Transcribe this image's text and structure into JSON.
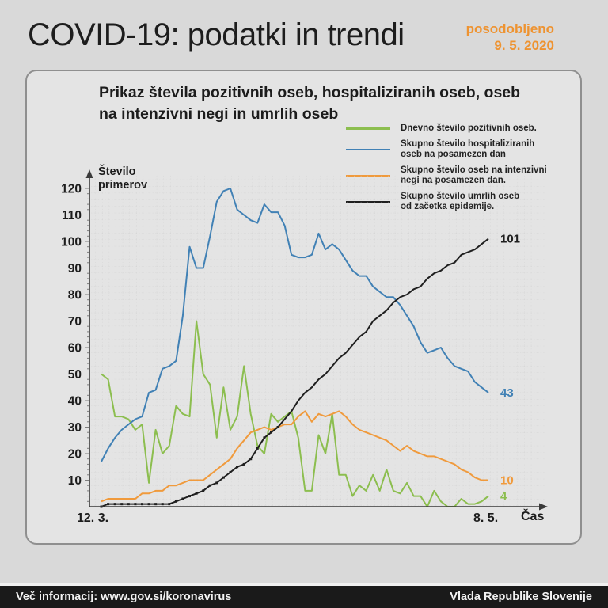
{
  "header": {
    "title": "COVID-19: podatki in trendi",
    "updated_label": "posodobljeno",
    "updated_date": "9. 5. 2020"
  },
  "panel": {
    "title_lines": [
      "Prikaz števila pozitivnih oseb, hospitaliziranih oseb, oseb",
      "na intenzivni negi in umrlih oseb"
    ]
  },
  "legend": {
    "items": [
      {
        "color": "#8cbe4f",
        "lines": [
          "Dnevno število pozitivnih oseb."
        ]
      },
      {
        "color": "#4181b5",
        "lines": [
          "Skupno število hospitaliziranih",
          "oseb na posamezen dan"
        ]
      },
      {
        "color": "#f09a3c",
        "lines": [
          "Skupno število oseb na intenzivni",
          "negi na posamezen dan."
        ]
      },
      {
        "color": "#1f1f1f",
        "lines": [
          "Skupno število umrlih oseb",
          "od začetka epidemije."
        ]
      }
    ]
  },
  "chart_data": {
    "type": "line",
    "title": "Prikaz števila pozitivnih oseb, hospitaliziranih oseb, oseb na intenzivni negi in umrlih oseb",
    "ylabel": "Število primerov",
    "xlabel": "Čas",
    "x_start_label": "12. 3.",
    "x_end_label": "8. 5.",
    "x_range_days": 58,
    "ylim": [
      0,
      120
    ],
    "y_ticks": [
      10,
      20,
      30,
      40,
      50,
      60,
      70,
      80,
      90,
      100,
      110,
      120
    ],
    "grid": "subtle-dotted",
    "legend_position": "top-right",
    "series": [
      {
        "name": "Dnevno število pozitivnih oseb.",
        "color": "#8cbe4f",
        "end_label": "4",
        "values": [
          50,
          48,
          34,
          34,
          33,
          29,
          31,
          9,
          29,
          20,
          23,
          38,
          35,
          34,
          70,
          50,
          46,
          26,
          45,
          29,
          34,
          53,
          35,
          23,
          20,
          35,
          32,
          34,
          36,
          26,
          6,
          6,
          27,
          20,
          35,
          12,
          12,
          4,
          8,
          6,
          12,
          6,
          14,
          6,
          5,
          9,
          4,
          4,
          0,
          6,
          2,
          0,
          0,
          3,
          1,
          1,
          2,
          4
        ]
      },
      {
        "name": "Skupno število hospitaliziranih oseb na posamezen dan",
        "color": "#4181b5",
        "end_label": "43",
        "values": [
          17,
          22,
          26,
          29,
          31,
          33,
          34,
          43,
          44,
          52,
          53,
          55,
          72,
          98,
          90,
          90,
          102,
          115,
          119,
          120,
          112,
          110,
          108,
          107,
          114,
          111,
          111,
          106,
          95,
          94,
          94,
          95,
          103,
          97,
          99,
          97,
          93,
          89,
          87,
          87,
          83,
          81,
          79,
          79,
          76,
          72,
          68,
          62,
          58,
          59,
          60,
          56,
          53,
          52,
          51,
          47,
          45,
          43
        ]
      },
      {
        "name": "Skupno število oseb na intenzivni negi na posamezen dan.",
        "color": "#f09a3c",
        "end_label": "10",
        "values": [
          2,
          3,
          3,
          3,
          3,
          3,
          5,
          5,
          6,
          6,
          8,
          8,
          9,
          10,
          10,
          10,
          12,
          14,
          16,
          18,
          22,
          25,
          28,
          29,
          30,
          29,
          30,
          31,
          31,
          34,
          36,
          32,
          35,
          34,
          35,
          36,
          34,
          31,
          29,
          28,
          27,
          26,
          25,
          23,
          21,
          23,
          21,
          20,
          19,
          19,
          18,
          17,
          16,
          14,
          13,
          11,
          10,
          10
        ]
      },
      {
        "name": "Skupno število umrlih oseb od začetka epidemije.",
        "color": "#1f1f1f",
        "end_label": "101",
        "markers_until_day": 26,
        "values": [
          0,
          1,
          1,
          1,
          1,
          1,
          1,
          1,
          1,
          1,
          1,
          2,
          3,
          4,
          5,
          6,
          8,
          9,
          11,
          13,
          15,
          16,
          18,
          22,
          26,
          28,
          30,
          33,
          36,
          40,
          43,
          45,
          48,
          50,
          53,
          56,
          58,
          61,
          64,
          66,
          70,
          72,
          74,
          77,
          79,
          80,
          82,
          83,
          86,
          88,
          89,
          91,
          92,
          95,
          96,
          97,
          99,
          101
        ]
      }
    ]
  },
  "footer": {
    "left": "Več informacij: www.gov.si/koronavirus",
    "right": "Vlada Republike Slovenije"
  }
}
